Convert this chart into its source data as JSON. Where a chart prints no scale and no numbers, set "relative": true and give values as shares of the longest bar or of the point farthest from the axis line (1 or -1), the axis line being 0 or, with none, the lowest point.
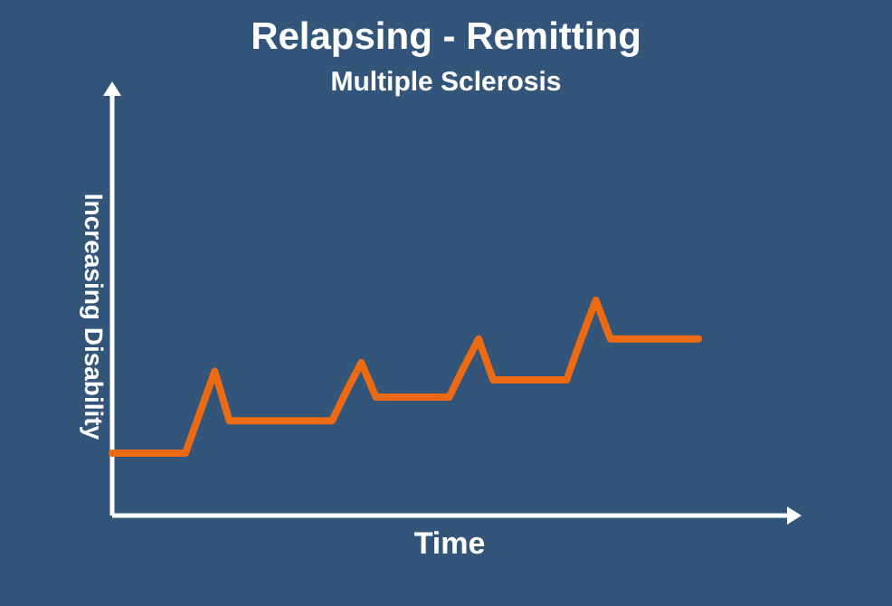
{
  "chart_data": {
    "type": "line",
    "title": "Relapsing - Remitting",
    "subtitle": "Multiple Sclerosis",
    "xlabel": "Time",
    "ylabel": "Increasing Disability",
    "relative": true,
    "categories": [
      null,
      null,
      null,
      null,
      null,
      null,
      null,
      null,
      null,
      null,
      null,
      null,
      null,
      null,
      null,
      null,
      null,
      null,
      null,
      null,
      null,
      null,
      null,
      null,
      null,
      null,
      null,
      null,
      null,
      null,
      null,
      null,
      null,
      null,
      null,
      null,
      null,
      null,
      null,
      null,
      null
    ],
    "series": [
      {
        "color": "#ec6a12",
        "values": [
          0.29,
          0.29,
          0.29,
          0.29,
          0.29,
          0.29,
          0.48,
          0.67,
          0.44,
          0.44,
          0.44,
          0.44,
          0.44,
          0.44,
          0.44,
          0.44,
          0.58,
          0.71,
          0.55,
          0.55,
          0.55,
          0.55,
          0.55,
          0.55,
          0.69,
          0.82,
          0.63,
          0.63,
          0.63,
          0.63,
          0.63,
          0.63,
          0.82,
          1,
          0.82,
          0.82,
          0.82,
          0.82,
          0.82,
          0.82,
          0.82
        ]
      }
    ]
  }
}
